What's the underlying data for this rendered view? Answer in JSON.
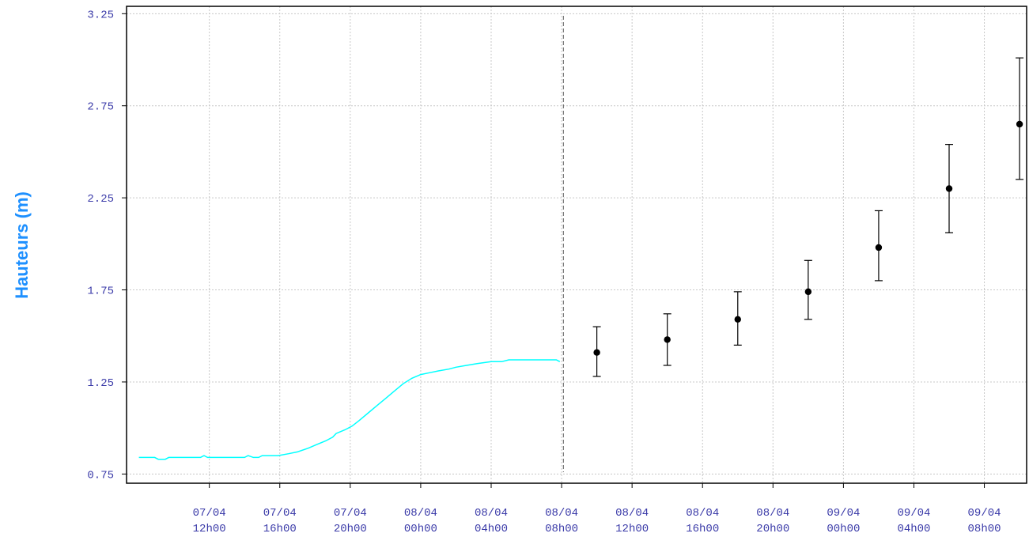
{
  "chart_data": {
    "type": "line",
    "ylabel": "Hauteurs (m)",
    "ylim": [
      0.7,
      3.29
    ],
    "y_ticks": [
      "3.25",
      "2.75",
      "2.25",
      "1.75",
      "1.25",
      "0.75"
    ],
    "x_ticks": [
      {
        "t": 4,
        "line1": "07/04",
        "line2": "12h00"
      },
      {
        "t": 8,
        "line1": "07/04",
        "line2": "16h00"
      },
      {
        "t": 12,
        "line1": "07/04",
        "line2": "20h00"
      },
      {
        "t": 16,
        "line1": "08/04",
        "line2": "00h00"
      },
      {
        "t": 20,
        "line1": "08/04",
        "line2": "04h00"
      },
      {
        "t": 24,
        "line1": "08/04",
        "line2": "08h00"
      },
      {
        "t": 28,
        "line1": "08/04",
        "line2": "12h00"
      },
      {
        "t": 32,
        "line1": "08/04",
        "line2": "16h00"
      },
      {
        "t": 36,
        "line1": "08/04",
        "line2": "20h00"
      },
      {
        "t": 40,
        "line1": "09/04",
        "line2": "00h00"
      },
      {
        "t": 44,
        "line1": "09/04",
        "line2": "04h00"
      },
      {
        "t": 48,
        "line1": "09/04",
        "line2": "08h00"
      }
    ],
    "xlim": [
      -0.7,
      50.4
    ],
    "grid": true,
    "observed_series": {
      "color": "#00ffff",
      "points": [
        [
          0.0,
          0.84
        ],
        [
          0.9,
          0.84
        ],
        [
          1.1,
          0.83
        ],
        [
          1.5,
          0.83
        ],
        [
          1.7,
          0.84
        ],
        [
          3.5,
          0.84
        ],
        [
          3.7,
          0.85
        ],
        [
          3.9,
          0.84
        ],
        [
          6.0,
          0.84
        ],
        [
          6.2,
          0.85
        ],
        [
          6.5,
          0.84
        ],
        [
          6.8,
          0.84
        ],
        [
          7.0,
          0.85
        ],
        [
          7.9,
          0.85
        ],
        [
          8.5,
          0.86
        ],
        [
          9.0,
          0.87
        ],
        [
          9.6,
          0.89
        ],
        [
          10.1,
          0.91
        ],
        [
          10.6,
          0.93
        ],
        [
          11.0,
          0.95
        ],
        [
          11.2,
          0.97
        ],
        [
          11.7,
          0.99
        ],
        [
          12.1,
          1.01
        ],
        [
          12.5,
          1.04
        ],
        [
          13.0,
          1.08
        ],
        [
          13.5,
          1.12
        ],
        [
          14.0,
          1.16
        ],
        [
          14.5,
          1.2
        ],
        [
          15.0,
          1.24
        ],
        [
          15.5,
          1.27
        ],
        [
          16.0,
          1.29
        ],
        [
          16.5,
          1.3
        ],
        [
          17.0,
          1.31
        ],
        [
          17.6,
          1.32
        ],
        [
          18.0,
          1.33
        ],
        [
          18.6,
          1.34
        ],
        [
          19.2,
          1.35
        ],
        [
          20.0,
          1.36
        ],
        [
          20.6,
          1.36
        ],
        [
          21.0,
          1.37
        ],
        [
          22.0,
          1.37
        ],
        [
          23.0,
          1.37
        ],
        [
          23.7,
          1.37
        ],
        [
          23.9,
          1.36
        ]
      ]
    },
    "forecast_boundary_t": 24.1,
    "forecast_series": {
      "color": "#000000",
      "points": [
        {
          "t": 26,
          "y": 1.41,
          "low": 1.28,
          "high": 1.55
        },
        {
          "t": 30,
          "y": 1.48,
          "low": 1.34,
          "high": 1.62
        },
        {
          "t": 34,
          "y": 1.59,
          "low": 1.45,
          "high": 1.74
        },
        {
          "t": 38,
          "y": 1.74,
          "low": 1.59,
          "high": 1.91
        },
        {
          "t": 42,
          "y": 1.98,
          "low": 1.8,
          "high": 2.18
        },
        {
          "t": 46,
          "y": 2.3,
          "low": 2.06,
          "high": 2.54
        },
        {
          "t": 50,
          "y": 2.65,
          "low": 2.35,
          "high": 3.01
        }
      ]
    }
  }
}
